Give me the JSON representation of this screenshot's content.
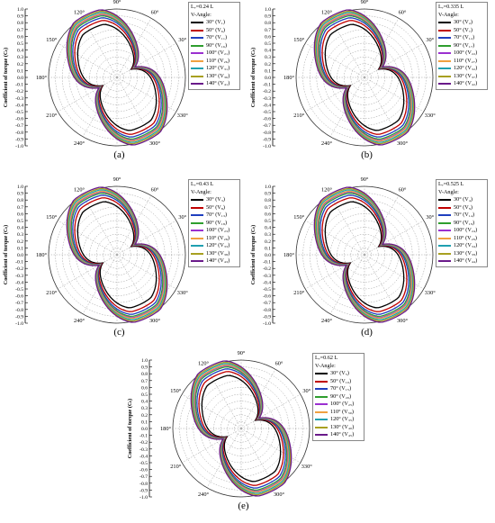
{
  "chart_data": [
    {
      "type": "polar-line",
      "panel_label": "(a)",
      "legend_title": "Lᵥ=0.24 L",
      "legend_subtitle": "V-Angle:",
      "ylabel": "Coefficient of torque (Cₜ)",
      "r_ticks": [
        "1.0",
        "0.9",
        "0.8",
        "0.7",
        "0.6",
        "0.5",
        "0.4",
        "0.3",
        "0.2",
        "0.1",
        "0.0",
        "-0.1",
        "-0.2",
        "-0.3",
        "-0.4",
        "-0.5",
        "-0.6",
        "-0.7",
        "-0.8",
        "-0.9",
        "-1.0"
      ],
      "rlim": [
        -1.0,
        1.0
      ],
      "angle_ticks": [
        "90°",
        "60°",
        "30°",
        "0°",
        "330°",
        "300°",
        "270°",
        "240°",
        "210°",
        "180°",
        "150°",
        "120°"
      ],
      "series": [
        {
          "name": "30° (V₁)",
          "color": "#000000",
          "scale": 0.8
        },
        {
          "name": "50° (V₆)",
          "color": "#c00000",
          "scale": 0.86
        },
        {
          "name": "70° (V₁₁)",
          "color": "#1f3fbf",
          "scale": 0.9
        },
        {
          "name": "90° (V₁₆)",
          "color": "#2e9e2e",
          "scale": 0.93
        },
        {
          "name": "100° (V₂₁)",
          "color": "#9b30d0",
          "scale": 0.95
        },
        {
          "name": "110° (V₂₆)",
          "color": "#f0a040",
          "scale": 0.96
        },
        {
          "name": "120° (V₃₁)",
          "color": "#20a0b0",
          "scale": 0.98
        },
        {
          "name": "130° (V₃₆)",
          "color": "#a8a020",
          "scale": 1.0
        },
        {
          "name": "140° (V₄₁)",
          "color": "#6a1a8a",
          "scale": 1.02
        }
      ]
    },
    {
      "type": "polar-line",
      "panel_label": "(b)",
      "legend_title": "Lᵥ=0.335 L",
      "legend_subtitle": "V-Angle:",
      "ylabel": "Coefficient of torque (Cₜ)",
      "r_ticks": [
        "1.0",
        "0.9",
        "0.8",
        "0.7",
        "0.6",
        "0.5",
        "0.4",
        "0.3",
        "0.2",
        "0.1",
        "0.0",
        "-0.1",
        "-0.2",
        "-0.3",
        "-0.4",
        "-0.5",
        "-0.6",
        "-0.7",
        "-0.8",
        "-0.9",
        "-1.0"
      ],
      "rlim": [
        -1.0,
        1.0
      ],
      "angle_ticks": [
        "90°",
        "60°",
        "30°",
        "0°",
        "330°",
        "300°",
        "270°",
        "240°",
        "210°",
        "180°",
        "150°",
        "120°"
      ],
      "series": [
        {
          "name": "30° (V₂)",
          "color": "#000000",
          "scale": 0.8
        },
        {
          "name": "50° (V₇)",
          "color": "#c00000",
          "scale": 0.86
        },
        {
          "name": "70° (V₁₂)",
          "color": "#1f3fbf",
          "scale": 0.9
        },
        {
          "name": "90° (V₁₇)",
          "color": "#2e9e2e",
          "scale": 0.93
        },
        {
          "name": "100° (V₂₂)",
          "color": "#9b30d0",
          "scale": 0.95
        },
        {
          "name": "110° (V₂₇)",
          "color": "#f0a040",
          "scale": 0.96
        },
        {
          "name": "120° (V₃₂)",
          "color": "#20a0b0",
          "scale": 0.98
        },
        {
          "name": "130° (V₃₇)",
          "color": "#a8a020",
          "scale": 1.0
        },
        {
          "name": "140° (V₄₂)",
          "color": "#6a1a8a",
          "scale": 1.02
        }
      ]
    },
    {
      "type": "polar-line",
      "panel_label": "(c)",
      "legend_title": "Lᵥ=0.43 L",
      "legend_subtitle": "V-Angle:",
      "ylabel": "Coefficient of torque (Cₜ)",
      "r_ticks": [
        "1.0",
        "0.9",
        "0.8",
        "0.7",
        "0.6",
        "0.5",
        "0.4",
        "0.3",
        "0.2",
        "0.1",
        "0.0",
        "-0.1",
        "-0.2",
        "-0.3",
        "-0.4",
        "-0.5",
        "-0.6",
        "-0.7",
        "-0.8",
        "-0.9",
        "-1.0"
      ],
      "rlim": [
        -1.0,
        1.0
      ],
      "angle_ticks": [
        "90°",
        "60°",
        "30°",
        "0°",
        "330°",
        "300°",
        "270°",
        "240°",
        "210°",
        "180°",
        "150°",
        "120°"
      ],
      "series": [
        {
          "name": "30° (V₃)",
          "color": "#000000",
          "scale": 0.8
        },
        {
          "name": "50° (V₈)",
          "color": "#c00000",
          "scale": 0.86
        },
        {
          "name": "70° (V₁₃)",
          "color": "#1f3fbf",
          "scale": 0.9
        },
        {
          "name": "90° (V₁₈)",
          "color": "#2e9e2e",
          "scale": 0.93
        },
        {
          "name": "100° (V₂₃)",
          "color": "#9b30d0",
          "scale": 0.95
        },
        {
          "name": "110° (V₂₈)",
          "color": "#f0a040",
          "scale": 0.96
        },
        {
          "name": "120° (V₃₃)",
          "color": "#20a0b0",
          "scale": 0.98
        },
        {
          "name": "130° (V₃₈)",
          "color": "#a8a020",
          "scale": 1.0
        },
        {
          "name": "140° (V₄₃)",
          "color": "#6a1a8a",
          "scale": 1.02
        }
      ]
    },
    {
      "type": "polar-line",
      "panel_label": "(d)",
      "legend_title": "Lᵥ=0.525 L",
      "legend_subtitle": "V-Angle:",
      "ylabel": "Coefficient of torque (Cₜ)",
      "r_ticks": [
        "1.0",
        "0.9",
        "0.8",
        "0.7",
        "0.6",
        "0.5",
        "0.4",
        "0.3",
        "0.2",
        "0.1",
        "0.0",
        "-0.1",
        "-0.2",
        "-0.3",
        "-0.4",
        "-0.5",
        "-0.6",
        "-0.7",
        "-0.8",
        "-0.9",
        "-1.0"
      ],
      "rlim": [
        -1.0,
        1.0
      ],
      "angle_ticks": [
        "90°",
        "60°",
        "30°",
        "0°",
        "330°",
        "300°",
        "270°",
        "240°",
        "210°",
        "180°",
        "150°",
        "120°"
      ],
      "series": [
        {
          "name": "30° (V₄)",
          "color": "#000000",
          "scale": 0.8
        },
        {
          "name": "50° (V₉)",
          "color": "#c00000",
          "scale": 0.86
        },
        {
          "name": "70° (V₁₄)",
          "color": "#1f3fbf",
          "scale": 0.9
        },
        {
          "name": "90° (V₁₉)",
          "color": "#2e9e2e",
          "scale": 0.93
        },
        {
          "name": "100° (V₂₄)",
          "color": "#9b30d0",
          "scale": 0.95
        },
        {
          "name": "110° (V₂₉)",
          "color": "#f0a040",
          "scale": 0.96
        },
        {
          "name": "120° (V₃₄)",
          "color": "#20a0b0",
          "scale": 0.98
        },
        {
          "name": "130° (V₃₉)",
          "color": "#a8a020",
          "scale": 1.0
        },
        {
          "name": "140° (V₄₄)",
          "color": "#6a1a8a",
          "scale": 1.02
        }
      ]
    },
    {
      "type": "polar-line",
      "panel_label": "(e)",
      "legend_title": "Lᵥ=0.62 L",
      "legend_subtitle": "V-Angle:",
      "ylabel": "Coefficient of torque (Cₜ)",
      "r_ticks": [
        "1.0",
        "0.9",
        "0.8",
        "0.7",
        "0.6",
        "0.5",
        "0.4",
        "0.3",
        "0.2",
        "0.1",
        "0.0",
        "-0.1",
        "-0.2",
        "-0.3",
        "-0.4",
        "-0.5",
        "-0.6",
        "-0.7",
        "-0.8",
        "-0.9",
        "-1.0"
      ],
      "rlim": [
        -1.0,
        1.0
      ],
      "angle_ticks": [
        "90°",
        "60°",
        "30°",
        "0°",
        "330°",
        "300°",
        "270°",
        "240°",
        "210°",
        "180°",
        "150°",
        "120°"
      ],
      "series": [
        {
          "name": "30° (V₅)",
          "color": "#000000",
          "scale": 0.8
        },
        {
          "name": "50° (V₁₀)",
          "color": "#c00000",
          "scale": 0.86
        },
        {
          "name": "70° (V₁₅)",
          "color": "#1f3fbf",
          "scale": 0.9
        },
        {
          "name": "90° (V₂₀)",
          "color": "#2e9e2e",
          "scale": 0.93
        },
        {
          "name": "100° (V₂₅)",
          "color": "#9b30d0",
          "scale": 0.95
        },
        {
          "name": "110° (V₃₀)",
          "color": "#f0a040",
          "scale": 0.96
        },
        {
          "name": "120° (V₃₅)",
          "color": "#20a0b0",
          "scale": 0.98
        },
        {
          "name": "130° (V₄₀)",
          "color": "#a8a020",
          "scale": 1.0
        },
        {
          "name": "140° (V₄₅)",
          "color": "#6a1a8a",
          "scale": 1.02
        }
      ]
    }
  ]
}
